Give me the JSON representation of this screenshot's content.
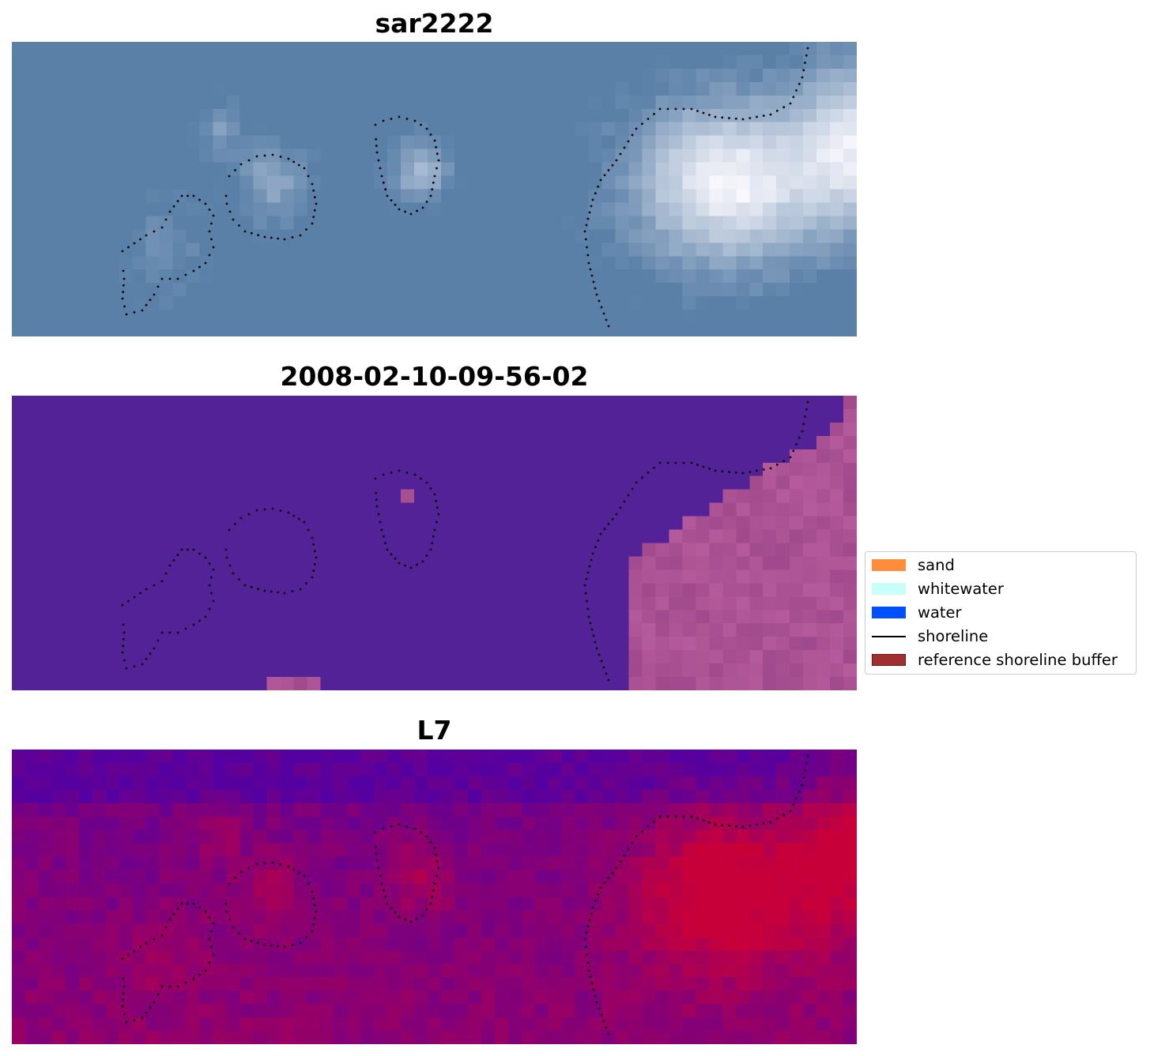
{
  "panels": [
    {
      "id": "rgb",
      "title": "sar2222",
      "description": "satellite rgb composite"
    },
    {
      "id": "classified",
      "title": "2008-02-10-09-56-02",
      "description": "classified overlay"
    },
    {
      "id": "index",
      "title": "L7",
      "description": "spectral index"
    }
  ],
  "legend": {
    "items": [
      {
        "label": "sand",
        "type": "patch",
        "color": "#ff8c3c"
      },
      {
        "label": "whitewater",
        "type": "patch",
        "color": "#c8fff8"
      },
      {
        "label": "water",
        "type": "patch",
        "color": "#0050ff"
      },
      {
        "label": "shoreline",
        "type": "line",
        "color": "#000000"
      },
      {
        "label": "reference shoreline buffer",
        "type": "patch",
        "color": "#a03030",
        "edge": "#7a1010"
      }
    ]
  },
  "colors": {
    "rgb_base": "#5a80a8",
    "rgb_bright": "#f4f4fa",
    "class_water": "#532297",
    "class_land": "#b55a9a",
    "index_low": "#5500a0",
    "index_high": "#c8003a"
  }
}
